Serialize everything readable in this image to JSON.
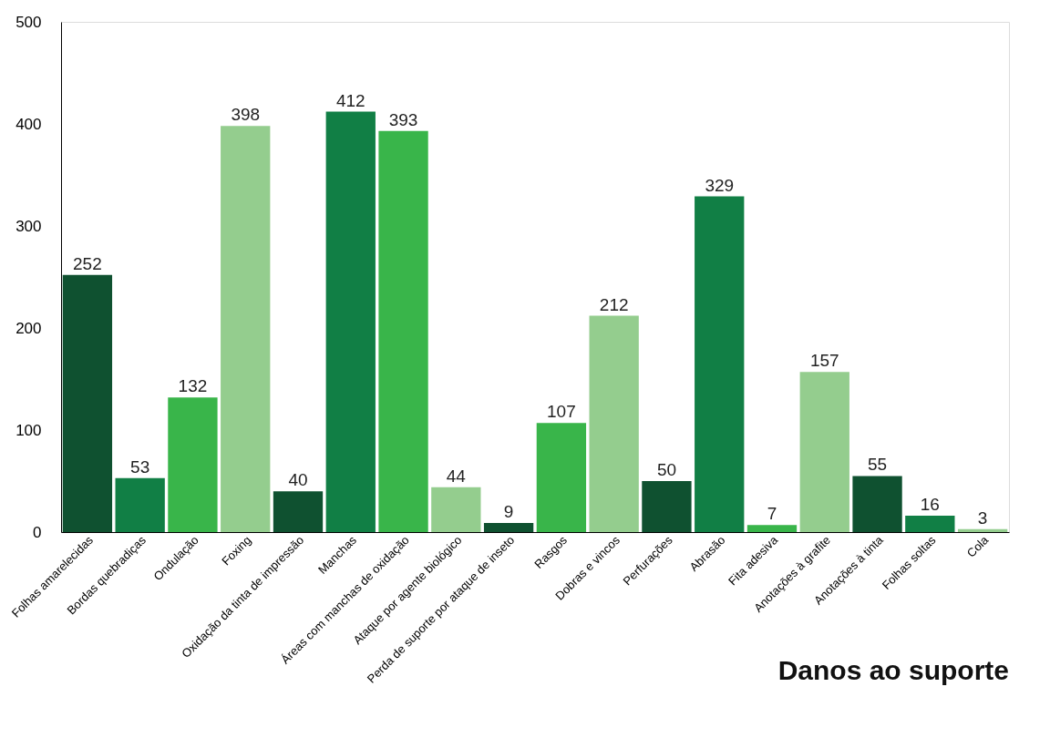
{
  "chart_data": {
    "type": "bar",
    "title": "Danos ao suporte",
    "categories": [
      "Folhas amarelecidas",
      "Bordas quebradiças",
      "Ondulação",
      "Foxing",
      "Oxidação da tinta de impressão",
      "Manchas",
      "Áreas com manchas de oxidação",
      "Ataque por agente biológico",
      "Perda de suporte por ataque de inseto",
      "Rasgos",
      "Dobras e vincos",
      "Perfurações",
      "Abrasão",
      "Fita adesiva",
      "Anotações à grafite",
      "Anotações à tinta",
      "Folhas soltas",
      "Cola"
    ],
    "values": [
      252,
      53,
      132,
      398,
      40,
      412,
      393,
      44,
      9,
      107,
      212,
      50,
      329,
      7,
      157,
      55,
      16,
      3
    ],
    "colors": [
      "#0f5130",
      "#117f45",
      "#39b54a",
      "#94cd8e",
      "#0f5130",
      "#117f45",
      "#39b54a",
      "#94cd8e",
      "#0f5130",
      "#39b54a",
      "#94cd8e",
      "#0f5130",
      "#117f45",
      "#39b54a",
      "#94cd8e",
      "#0f5130",
      "#117f45",
      "#94cd8e"
    ],
    "ylim": [
      0,
      500
    ],
    "yticks": [
      0,
      100,
      200,
      300,
      400,
      500
    ],
    "data_labels": true,
    "grid": false,
    "legend": false
  }
}
